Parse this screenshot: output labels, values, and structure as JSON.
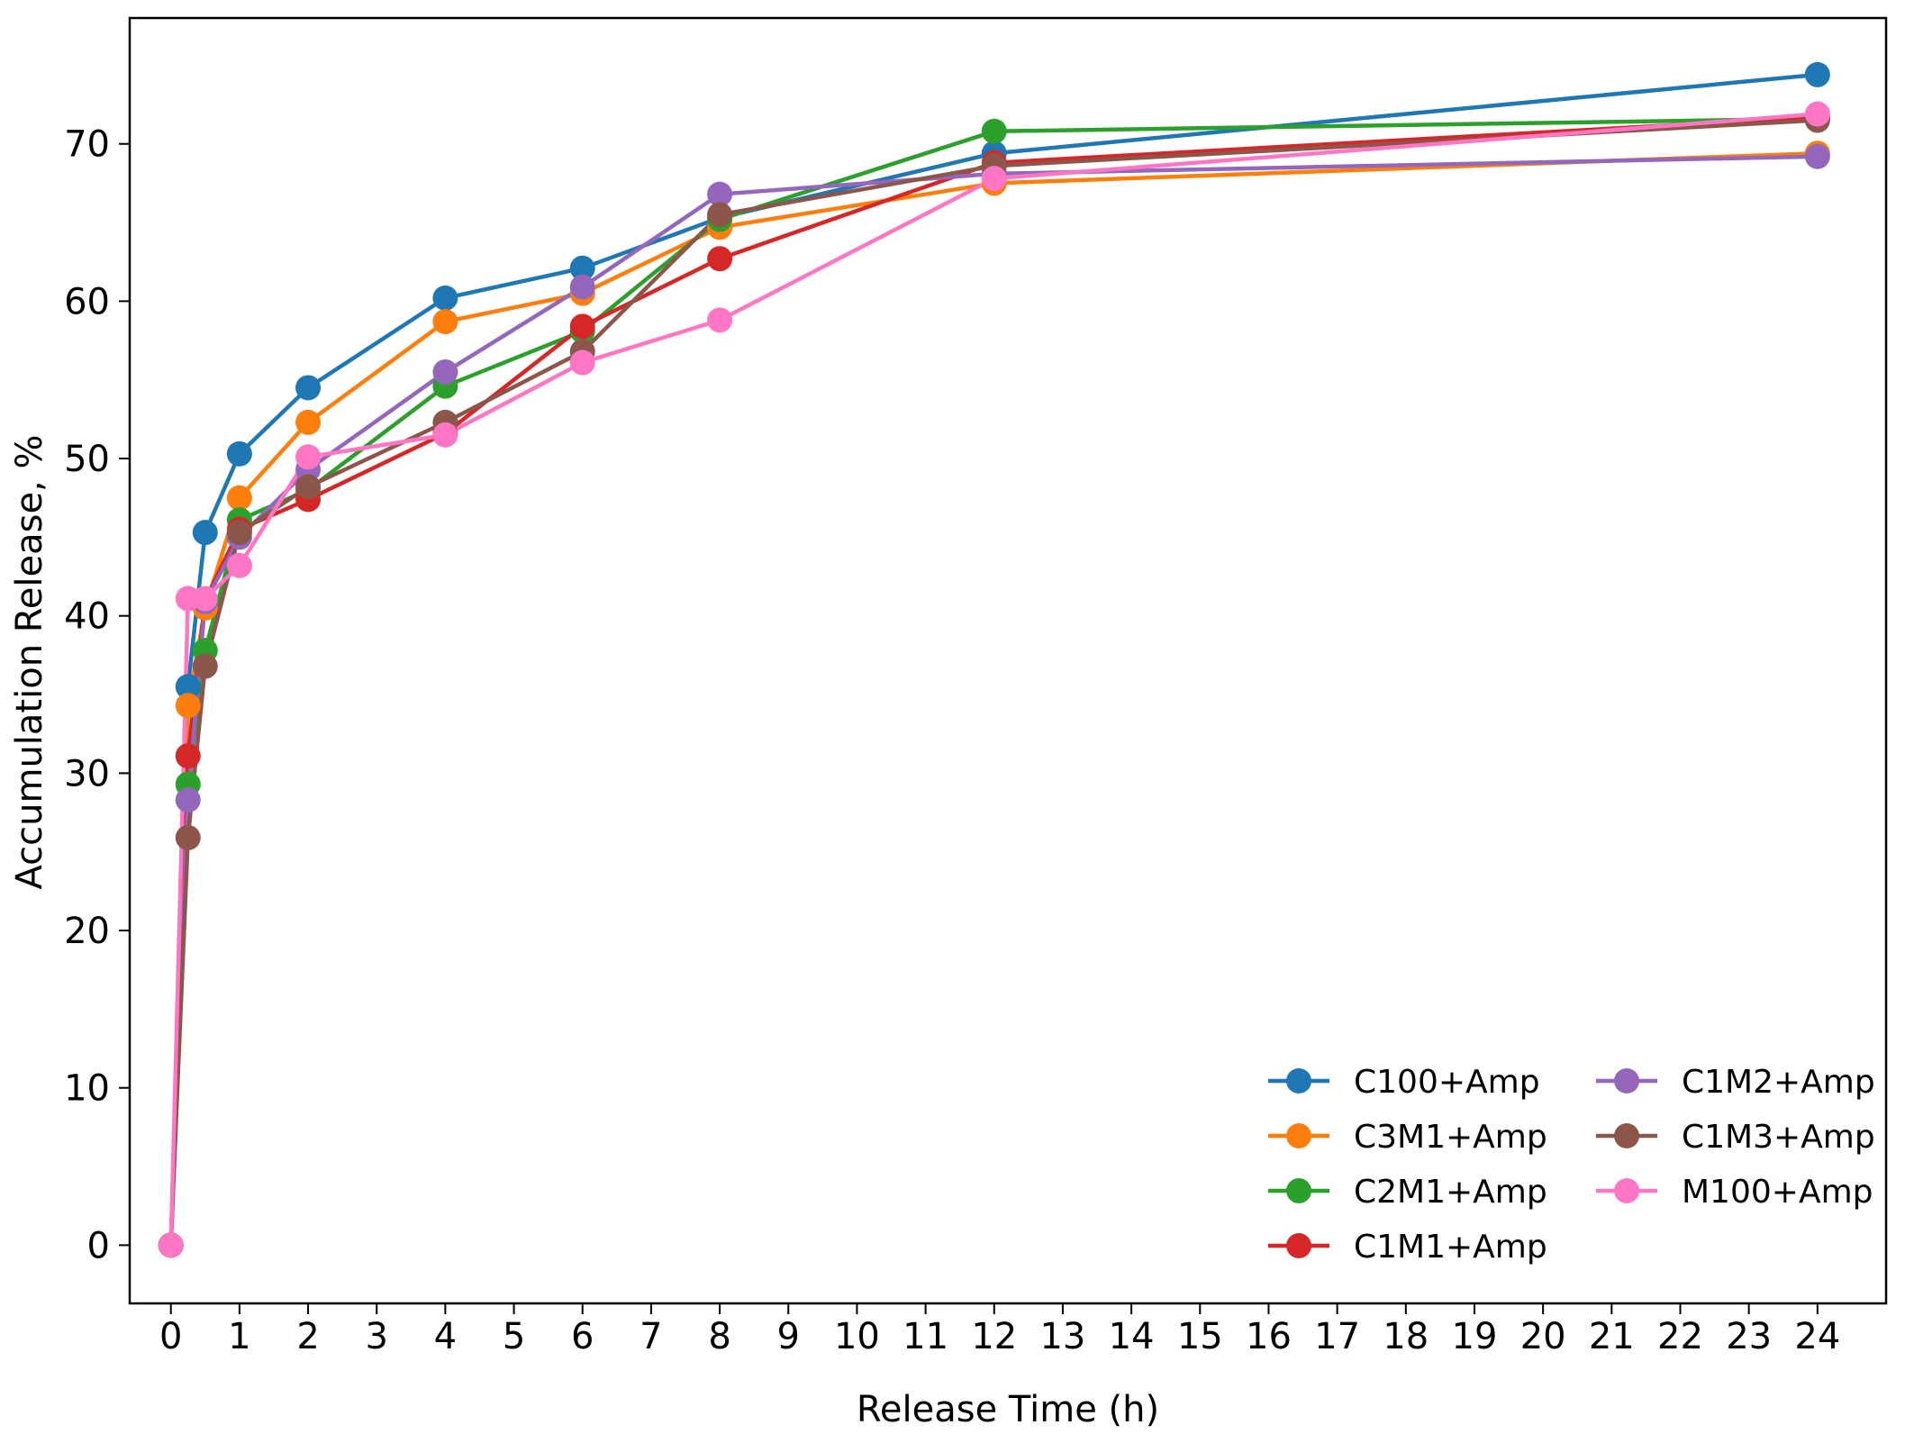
{
  "chart_data": {
    "type": "line",
    "xlabel": "Release Time (h)",
    "ylabel": "Accumulation Release, %",
    "xlim": [
      -0.6,
      25.0
    ],
    "ylim": [
      -3.7,
      78.0
    ],
    "x_ticks": [
      0,
      1,
      2,
      3,
      4,
      5,
      6,
      7,
      8,
      9,
      10,
      11,
      12,
      13,
      14,
      15,
      16,
      17,
      18,
      19,
      20,
      21,
      22,
      23,
      24
    ],
    "y_ticks": [
      0,
      10,
      20,
      30,
      40,
      50,
      60,
      70
    ],
    "grid": false,
    "legend_position": "lower-right",
    "legend_columns": 2,
    "series": [
      {
        "name": "C100+Amp",
        "color": "#1f77b4",
        "x": [
          0,
          0.25,
          0.5,
          1,
          2,
          4,
          6,
          8,
          12,
          24
        ],
        "y": [
          0,
          35.5,
          45.3,
          50.3,
          54.5,
          60.2,
          62.1,
          65.3,
          69.4,
          74.4
        ]
      },
      {
        "name": "C3M1+Amp",
        "color": "#ff7f0e",
        "x": [
          0,
          0.25,
          0.5,
          1,
          2,
          4,
          6,
          8,
          12,
          24
        ],
        "y": [
          0,
          34.3,
          40.5,
          47.5,
          52.3,
          58.7,
          60.5,
          64.7,
          67.5,
          69.4
        ]
      },
      {
        "name": "C2M1+Amp",
        "color": "#2ca02c",
        "x": [
          0,
          0.25,
          0.5,
          1,
          2,
          4,
          6,
          8,
          12,
          24
        ],
        "y": [
          0,
          29.3,
          37.8,
          46.1,
          48.0,
          54.6,
          58.1,
          65.2,
          70.8,
          71.6
        ]
      },
      {
        "name": "C1M1+Amp",
        "color": "#d62728",
        "x": [
          0,
          0.25,
          0.5,
          1,
          2,
          4,
          6,
          8,
          12,
          24
        ],
        "y": [
          0,
          31.1,
          41.0,
          45.5,
          47.4,
          51.6,
          58.4,
          62.7,
          68.8,
          71.7
        ]
      },
      {
        "name": "C1M2+Amp",
        "color": "#9467bd",
        "x": [
          0,
          0.25,
          0.5,
          1,
          2,
          4,
          6,
          8,
          12,
          24
        ],
        "y": [
          0,
          28.3,
          40.9,
          45.0,
          49.3,
          55.5,
          60.9,
          66.8,
          68.1,
          69.2
        ]
      },
      {
        "name": "C1M3+Amp",
        "color": "#8c564b",
        "x": [
          0,
          0.25,
          0.5,
          1,
          2,
          4,
          6,
          8,
          12,
          24
        ],
        "y": [
          0,
          25.9,
          36.8,
          45.3,
          48.2,
          52.3,
          56.8,
          65.5,
          68.6,
          71.5
        ]
      },
      {
        "name": "M100+Amp",
        "color": "#ff77c4",
        "x": [
          0,
          0.25,
          0.5,
          1,
          2,
          4,
          6,
          8,
          12,
          24
        ],
        "y": [
          0,
          41.1,
          41.1,
          43.2,
          50.1,
          51.5,
          56.1,
          58.8,
          67.8,
          71.9
        ]
      }
    ]
  }
}
